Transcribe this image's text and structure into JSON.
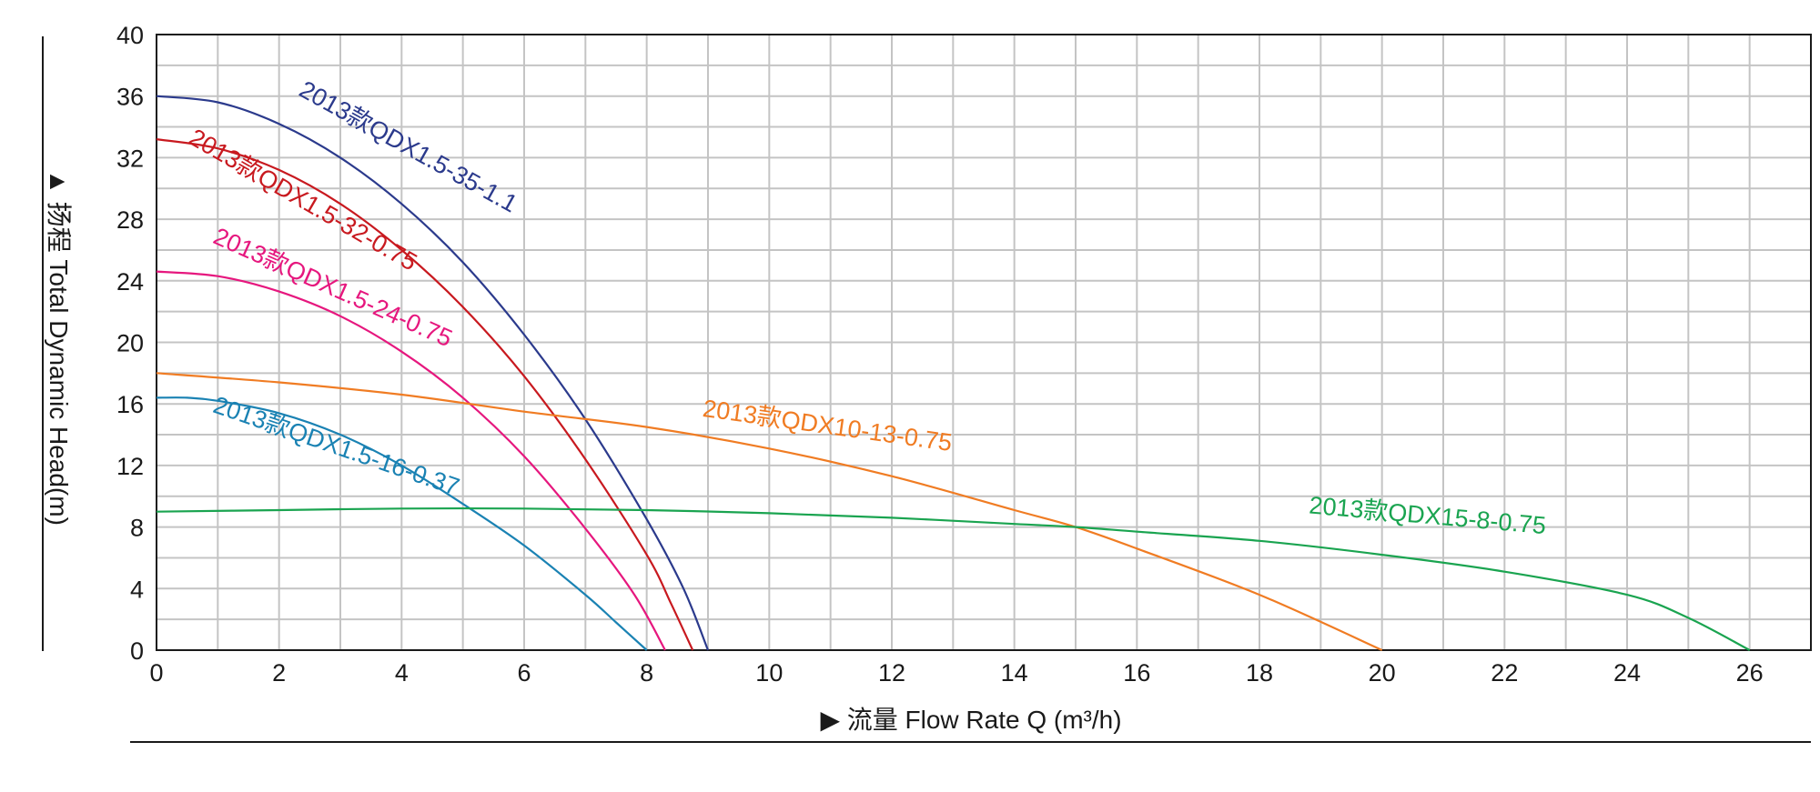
{
  "chart_data": {
    "type": "line",
    "title": "",
    "xlabel": "▶ 流量 Flow Rate Q (m³/h)",
    "ylabel": "▲ 扬程 Total Dynamic Head(m)",
    "xlim": [
      0,
      27
    ],
    "ylim": [
      0,
      40
    ],
    "grid": true,
    "x_ticks": [
      "0",
      "2",
      "4",
      "6",
      "8",
      "10",
      "12",
      "14",
      "16",
      "18",
      "20",
      "22",
      "24",
      "26"
    ],
    "y_ticks": [
      "0",
      "4",
      "8",
      "12",
      "16",
      "20",
      "24",
      "28",
      "32",
      "36",
      "40"
    ],
    "series": [
      {
        "name": "2013款QDX1.5-35-1.1",
        "color": "#2b3a8c",
        "x": [
          0,
          1,
          2,
          3,
          4,
          5,
          6,
          7,
          8,
          8.6,
          9.0
        ],
        "y": [
          36,
          35.6,
          34.2,
          32.0,
          29.0,
          25.2,
          20.5,
          15.0,
          8.5,
          4.0,
          0
        ]
      },
      {
        "name": "2013款QDX1.5-32-0.75",
        "color": "#c8191f",
        "x": [
          0,
          1,
          2,
          3,
          4,
          5,
          6,
          7,
          8,
          8.4,
          8.75
        ],
        "y": [
          33.2,
          32.6,
          31.2,
          29.0,
          26.0,
          22.3,
          17.8,
          12.4,
          6.2,
          3.0,
          0
        ]
      },
      {
        "name": "2013款QDX1.5-24-0.75",
        "color": "#e6177e",
        "x": [
          0,
          1,
          2,
          3,
          4,
          5,
          6,
          7,
          7.8,
          8.3
        ],
        "y": [
          24.6,
          24.3,
          23.3,
          21.7,
          19.4,
          16.4,
          12.6,
          7.9,
          3.6,
          0
        ]
      },
      {
        "name": "2013款QDX1.5-16-0.37",
        "color": "#1a82b3",
        "x": [
          0,
          0.5,
          1,
          2,
          3,
          4,
          5,
          6,
          7,
          7.5,
          8.0
        ],
        "y": [
          16.4,
          16.4,
          16.2,
          15.4,
          14.0,
          12.0,
          9.5,
          6.8,
          3.6,
          1.8,
          0
        ]
      },
      {
        "name": "2013款QDX10-13-0.75",
        "color": "#f07c23",
        "x": [
          0,
          2,
          4,
          6,
          8,
          10,
          12,
          14,
          15,
          16,
          18,
          20
        ],
        "y": [
          18.0,
          17.4,
          16.6,
          15.5,
          14.5,
          13.1,
          11.3,
          9.1,
          8.0,
          6.6,
          3.6,
          0
        ]
      },
      {
        "name": "2013款QDX15-8-0.75",
        "color": "#1aa450",
        "x": [
          0,
          2,
          4,
          6,
          8,
          10,
          12,
          14,
          15,
          16,
          18,
          20,
          22,
          24,
          25,
          26
        ],
        "y": [
          9.0,
          9.1,
          9.2,
          9.2,
          9.1,
          8.9,
          8.6,
          8.2,
          8.0,
          7.7,
          7.1,
          6.2,
          5.1,
          3.6,
          2.1,
          0
        ]
      }
    ],
    "annotations": [
      {
        "text": "2013款QDX1.5-35-1.1",
        "series": 0
      },
      {
        "text": "2013款QDX1.5-32-0.75",
        "series": 1
      },
      {
        "text": "2013款QDX1.5-24-0.75",
        "series": 2
      },
      {
        "text": "2013款QDX1.5-16-0.37",
        "series": 3
      },
      {
        "text": "2013款QDX10-13-0.75",
        "series": 4
      },
      {
        "text": "2013款QDX15-8-0.75",
        "series": 5
      }
    ]
  }
}
